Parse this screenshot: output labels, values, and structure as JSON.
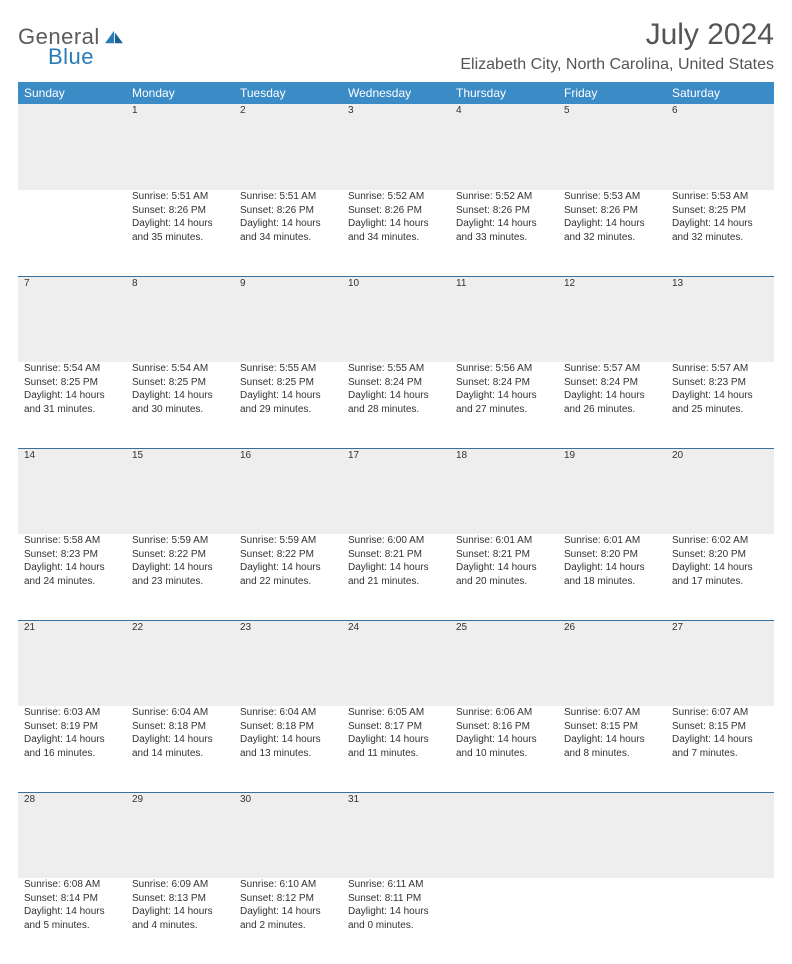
{
  "brand": {
    "part1": "General",
    "part2": "Blue"
  },
  "title": {
    "month": "July 2024",
    "location": "Elizabeth City, North Carolina, United States"
  },
  "colors": {
    "header_bg": "#3b8bc7",
    "header_text": "#ffffff",
    "daynum_bg": "#eeeeee",
    "divider": "#3b6e99",
    "body_text": "#333333",
    "title_text": "#555555",
    "brand_gray": "#5b5b5b",
    "brand_blue": "#2a7ab8"
  },
  "weekdays": [
    "Sunday",
    "Monday",
    "Tuesday",
    "Wednesday",
    "Thursday",
    "Friday",
    "Saturday"
  ],
  "weeks": [
    [
      null,
      {
        "n": "1",
        "sr": "5:51 AM",
        "ss": "8:26 PM",
        "dl": "14 hours and 35 minutes."
      },
      {
        "n": "2",
        "sr": "5:51 AM",
        "ss": "8:26 PM",
        "dl": "14 hours and 34 minutes."
      },
      {
        "n": "3",
        "sr": "5:52 AM",
        "ss": "8:26 PM",
        "dl": "14 hours and 34 minutes."
      },
      {
        "n": "4",
        "sr": "5:52 AM",
        "ss": "8:26 PM",
        "dl": "14 hours and 33 minutes."
      },
      {
        "n": "5",
        "sr": "5:53 AM",
        "ss": "8:26 PM",
        "dl": "14 hours and 32 minutes."
      },
      {
        "n": "6",
        "sr": "5:53 AM",
        "ss": "8:25 PM",
        "dl": "14 hours and 32 minutes."
      }
    ],
    [
      {
        "n": "7",
        "sr": "5:54 AM",
        "ss": "8:25 PM",
        "dl": "14 hours and 31 minutes."
      },
      {
        "n": "8",
        "sr": "5:54 AM",
        "ss": "8:25 PM",
        "dl": "14 hours and 30 minutes."
      },
      {
        "n": "9",
        "sr": "5:55 AM",
        "ss": "8:25 PM",
        "dl": "14 hours and 29 minutes."
      },
      {
        "n": "10",
        "sr": "5:55 AM",
        "ss": "8:24 PM",
        "dl": "14 hours and 28 minutes."
      },
      {
        "n": "11",
        "sr": "5:56 AM",
        "ss": "8:24 PM",
        "dl": "14 hours and 27 minutes."
      },
      {
        "n": "12",
        "sr": "5:57 AM",
        "ss": "8:24 PM",
        "dl": "14 hours and 26 minutes."
      },
      {
        "n": "13",
        "sr": "5:57 AM",
        "ss": "8:23 PM",
        "dl": "14 hours and 25 minutes."
      }
    ],
    [
      {
        "n": "14",
        "sr": "5:58 AM",
        "ss": "8:23 PM",
        "dl": "14 hours and 24 minutes."
      },
      {
        "n": "15",
        "sr": "5:59 AM",
        "ss": "8:22 PM",
        "dl": "14 hours and 23 minutes."
      },
      {
        "n": "16",
        "sr": "5:59 AM",
        "ss": "8:22 PM",
        "dl": "14 hours and 22 minutes."
      },
      {
        "n": "17",
        "sr": "6:00 AM",
        "ss": "8:21 PM",
        "dl": "14 hours and 21 minutes."
      },
      {
        "n": "18",
        "sr": "6:01 AM",
        "ss": "8:21 PM",
        "dl": "14 hours and 20 minutes."
      },
      {
        "n": "19",
        "sr": "6:01 AM",
        "ss": "8:20 PM",
        "dl": "14 hours and 18 minutes."
      },
      {
        "n": "20",
        "sr": "6:02 AM",
        "ss": "8:20 PM",
        "dl": "14 hours and 17 minutes."
      }
    ],
    [
      {
        "n": "21",
        "sr": "6:03 AM",
        "ss": "8:19 PM",
        "dl": "14 hours and 16 minutes."
      },
      {
        "n": "22",
        "sr": "6:04 AM",
        "ss": "8:18 PM",
        "dl": "14 hours and 14 minutes."
      },
      {
        "n": "23",
        "sr": "6:04 AM",
        "ss": "8:18 PM",
        "dl": "14 hours and 13 minutes."
      },
      {
        "n": "24",
        "sr": "6:05 AM",
        "ss": "8:17 PM",
        "dl": "14 hours and 11 minutes."
      },
      {
        "n": "25",
        "sr": "6:06 AM",
        "ss": "8:16 PM",
        "dl": "14 hours and 10 minutes."
      },
      {
        "n": "26",
        "sr": "6:07 AM",
        "ss": "8:15 PM",
        "dl": "14 hours and 8 minutes."
      },
      {
        "n": "27",
        "sr": "6:07 AM",
        "ss": "8:15 PM",
        "dl": "14 hours and 7 minutes."
      }
    ],
    [
      {
        "n": "28",
        "sr": "6:08 AM",
        "ss": "8:14 PM",
        "dl": "14 hours and 5 minutes."
      },
      {
        "n": "29",
        "sr": "6:09 AM",
        "ss": "8:13 PM",
        "dl": "14 hours and 4 minutes."
      },
      {
        "n": "30",
        "sr": "6:10 AM",
        "ss": "8:12 PM",
        "dl": "14 hours and 2 minutes."
      },
      {
        "n": "31",
        "sr": "6:11 AM",
        "ss": "8:11 PM",
        "dl": "14 hours and 0 minutes."
      },
      null,
      null,
      null
    ]
  ],
  "labels": {
    "sunrise": "Sunrise:",
    "sunset": "Sunset:",
    "daylight": "Daylight:"
  }
}
